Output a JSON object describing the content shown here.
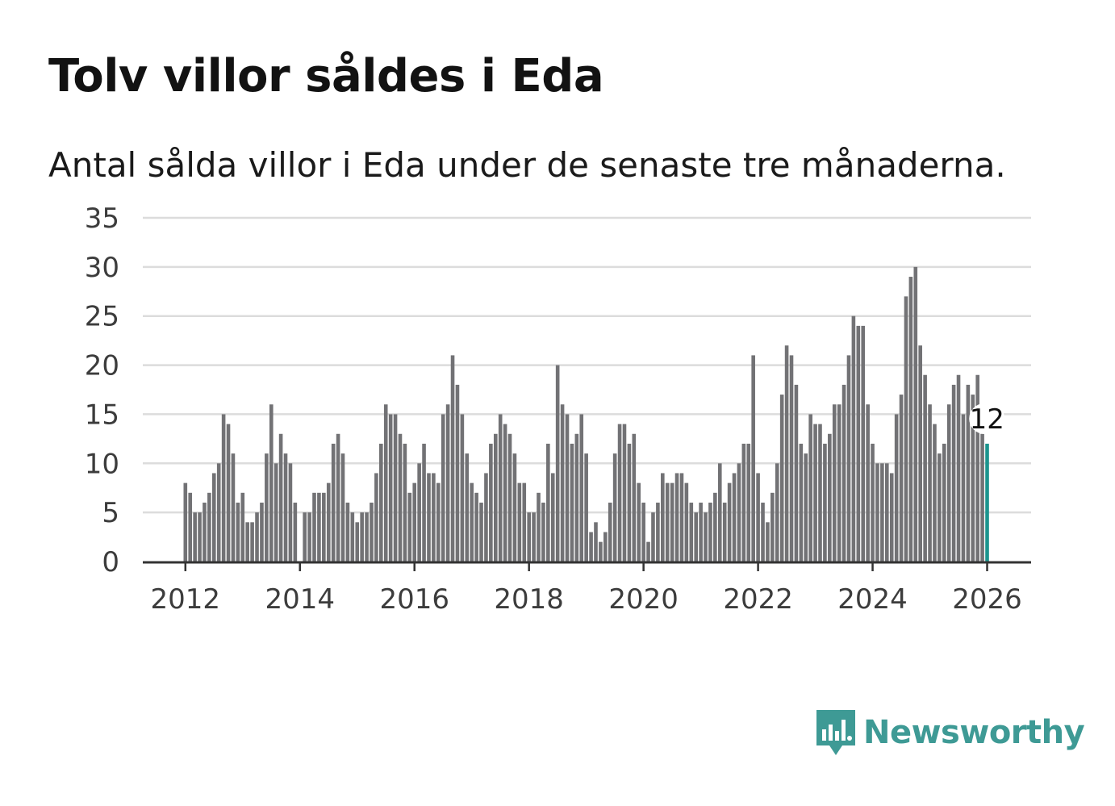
{
  "title": "Tolv villor såldes i Eda",
  "subtitle": "Antal sålda villor i Eda under de senaste tre månaderna.",
  "brand": {
    "name": "Newsworthy",
    "color": "#3e9a95"
  },
  "colors": {
    "bar": "#727275",
    "highlight": "#1b948e",
    "grid": "#dcdcdc",
    "axis": "#333333"
  },
  "chart_data": {
    "type": "bar",
    "title": "Tolv villor såldes i Eda",
    "subtitle": "Antal sålda villor i Eda under de senaste tre månaderna.",
    "xlabel": "",
    "ylabel": "",
    "ylim": [
      0,
      35
    ],
    "y_ticks": [
      "0",
      "5",
      "10",
      "15",
      "20",
      "25",
      "30",
      "35"
    ],
    "x_ticks": [
      "2012",
      "2014",
      "2016",
      "2018",
      "2020",
      "2022",
      "2024",
      "2026"
    ],
    "x_start": "2012-01",
    "x_end": "2026-01",
    "grid": true,
    "highlight_label": "12",
    "values": [
      8,
      7,
      5,
      5,
      6,
      7,
      9,
      10,
      15,
      14,
      11,
      6,
      7,
      4,
      4,
      5,
      6,
      11,
      16,
      10,
      13,
      11,
      10,
      6,
      0,
      5,
      5,
      7,
      7,
      7,
      8,
      12,
      13,
      11,
      6,
      5,
      4,
      5,
      5,
      6,
      9,
      12,
      16,
      15,
      15,
      13,
      12,
      7,
      8,
      10,
      12,
      9,
      9,
      8,
      15,
      16,
      21,
      18,
      15,
      11,
      8,
      7,
      6,
      9,
      12,
      13,
      15,
      14,
      13,
      11,
      8,
      8,
      5,
      5,
      7,
      6,
      12,
      9,
      20,
      16,
      15,
      12,
      13,
      15,
      11,
      3,
      4,
      2,
      3,
      6,
      11,
      14,
      14,
      12,
      13,
      8,
      6,
      2,
      5,
      6,
      9,
      8,
      8,
      9,
      9,
      8,
      6,
      5,
      6,
      5,
      6,
      7,
      10,
      6,
      8,
      9,
      10,
      12,
      12,
      21,
      9,
      6,
      4,
      7,
      10,
      17,
      22,
      21,
      18,
      12,
      11,
      15,
      14,
      14,
      12,
      13,
      16,
      16,
      18,
      21,
      25,
      24,
      24,
      16,
      12,
      10,
      10,
      10,
      9,
      15,
      17,
      27,
      29,
      30,
      22,
      19,
      16,
      14,
      11,
      12,
      16,
      18,
      19,
      15,
      18,
      17,
      19,
      13,
      12
    ]
  }
}
